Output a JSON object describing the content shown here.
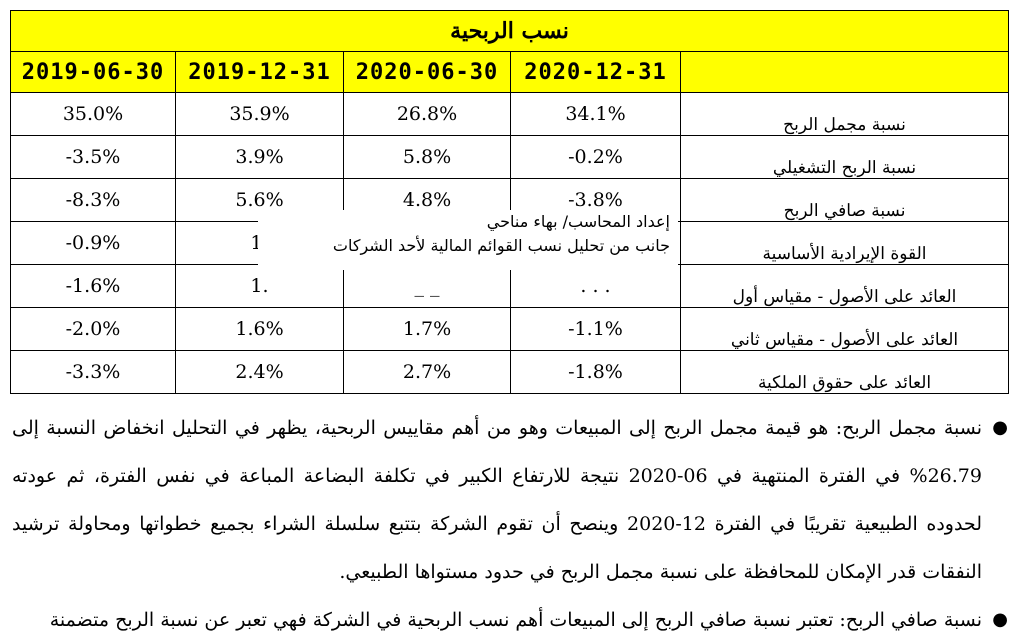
{
  "table": {
    "title": "نسب الربحية",
    "periods": [
      "2019-06-30",
      "2019-12-31",
      "2020-06-30",
      "2020-12-31"
    ],
    "rows": [
      {
        "label": "نسبة مجمل الربح",
        "values": [
          "35.0%",
          "35.9%",
          "26.8%",
          "34.1%"
        ]
      },
      {
        "label": "نسبة الربح التشغيلي",
        "values": [
          "-3.5%",
          "3.9%",
          "5.8%",
          "-0.2%"
        ]
      },
      {
        "label": "نسبة صافي الربح",
        "values": [
          "-8.3%",
          "5.6%",
          "4.8%",
          "-3.8%"
        ]
      },
      {
        "label": "القوة الإيرادية الأساسية",
        "values": [
          "-0.9%",
          "1.",
          "",
          ""
        ]
      },
      {
        "label": "العائد على الأصول - مقياس أول",
        "values": [
          "-1.6%",
          "1.",
          "_ _",
          ". . ."
        ]
      },
      {
        "label": "العائد على الأصول - مقياس ثاني",
        "values": [
          "-2.0%",
          "1.6%",
          "1.7%",
          "-1.1%"
        ]
      },
      {
        "label": "العائد على حقوق الملكية",
        "values": [
          "-3.3%",
          "2.4%",
          "2.7%",
          "-1.8%"
        ]
      }
    ]
  },
  "watermark": {
    "line1": "إعداد المحاسب/ بهاء مناحي",
    "line2": "جانب من تحليل نسب القوائم المالية لأحد الشركات"
  },
  "bullets": [
    "نسبة مجمل الربح: هو قيمة مجمل الربح إلى المبيعات وهو من أهم مقاييس الربحية، يظهر في التحليل انخفاض النسبة إلى 26.79% في الفترة المنتهية في 06-2020 نتيجة للارتفاع الكبير في تكلفة البضاعة المباعة في نفس الفترة، ثم عودته لحدوده الطبيعية تقريبًا في الفترة 12-2020 وينصح أن تقوم الشركة بتتبع سلسلة الشراء بجميع خطواتها ومحاولة ترشيد النفقات قدر الإمكان للمحافظة على نسبة مجمل الربح في حدود مستواها الطبيعي.",
    "نسبة صافي الربح: تعتبر نسبة صافي الربح إلى المبيعات أهم نسب الربحية في الشركة فهي تعبر عن نسبة الربح متضمنة"
  ]
}
